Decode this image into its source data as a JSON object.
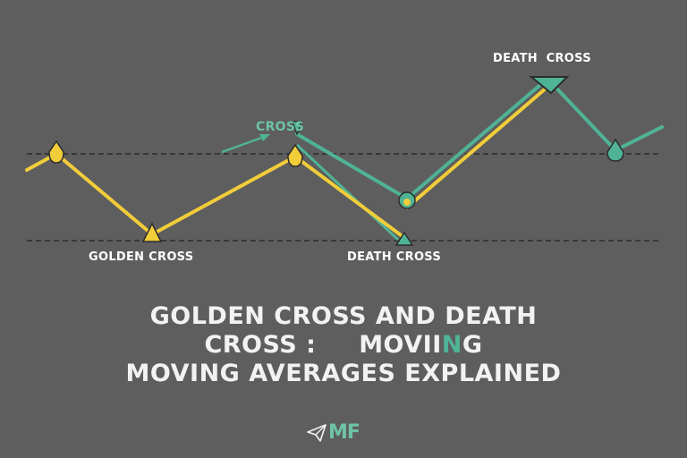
{
  "labels": {
    "golden_cross": "GOLDEN CROSS",
    "death_cross_lower": "DEATH CROSS",
    "death_cross_top": "DEATH  CROSS",
    "cross_small": "CROSS"
  },
  "title": {
    "line1": "GOLDEN CROSS AND DEATH",
    "line2_a": "CROSS :",
    "line2_b": "MOVII",
    "line2_accent": "N",
    "line2_c": "G",
    "line3": "MOVING AVERAGES EXPLAINED"
  },
  "logo": {
    "icon": "paper-plane-icon",
    "text": "MF"
  },
  "colors": {
    "background": "#5e5e5e",
    "yellow_line": "#f2cd3a",
    "teal_line": "#4fb396",
    "dashed": "#2c2c2c",
    "text": "#ffffff",
    "logo": "#6ec3a8"
  }
}
